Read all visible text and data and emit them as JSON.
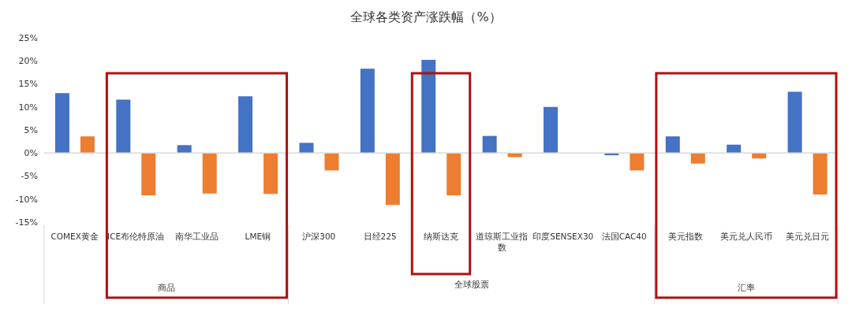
{
  "chart_data": {
    "type": "bar",
    "title": "全球各类资产涨跌幅（%）",
    "categories": [
      "COMEX黄金",
      "ICE布伦特原油",
      "南华工业品",
      "LME铜",
      "沪深300",
      "日经225",
      "纳斯达克",
      "道琼斯工业指数",
      "印度SENSEX30",
      "法国CAC40",
      "美元指数",
      "美元兑人民币",
      "美元兑日元"
    ],
    "series": [
      {
        "color": "#4472c4",
        "values": [
          13.0,
          11.6,
          1.7,
          12.3,
          2.2,
          18.3,
          20.2,
          3.7,
          10.0,
          -0.5,
          3.6,
          1.8,
          13.3
        ]
      },
      {
        "color": "#ed7d31",
        "values": [
          3.6,
          -9.2,
          -8.8,
          -8.9,
          -3.8,
          -11.3,
          -9.2,
          -0.9,
          null,
          -3.8,
          -2.3,
          -1.2,
          -9.0
        ]
      }
    ],
    "ylim": [
      -15,
      25
    ],
    "yticks": [
      {
        "value": -15,
        "label": "-15%"
      },
      {
        "value": -10,
        "label": "-10%"
      },
      {
        "value": -5,
        "label": "-5%"
      },
      {
        "value": 0,
        "label": "0%"
      },
      {
        "value": 5,
        "label": "5%"
      },
      {
        "value": 10,
        "label": "10%"
      },
      {
        "value": 15,
        "label": "15%"
      },
      {
        "value": 20,
        "label": "20%"
      },
      {
        "value": 25,
        "label": "25%"
      }
    ],
    "ref_lines": [
      {
        "axis": "y",
        "value": 0,
        "color": "#d9d9d9"
      }
    ],
    "annotations": [
      "商品",
      "全球股票",
      "汇率"
    ],
    "grid": false,
    "legend": false
  }
}
